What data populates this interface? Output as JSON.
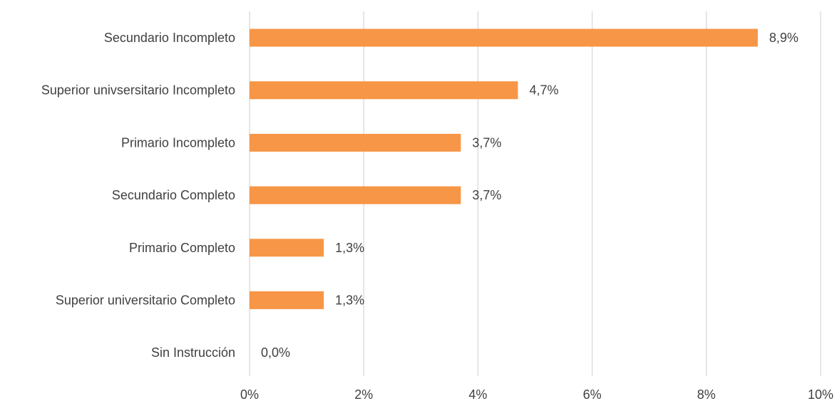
{
  "chart_data": {
    "type": "bar",
    "orientation": "horizontal",
    "categories": [
      "Secundario Incompleto",
      "Superior univsersitario Incompleto",
      "Primario Incompleto",
      "Secundario Completo",
      "Primario Completo",
      "Superior universitario Completo",
      "Sin Instrucción"
    ],
    "values": [
      8.9,
      4.7,
      3.7,
      3.7,
      1.3,
      1.3,
      0.0
    ],
    "data_labels": [
      "8,9%",
      "4,7%",
      "3,7%",
      "3,7%",
      "1,3%",
      "1,3%",
      "0,0%"
    ],
    "xlim": [
      0,
      10
    ],
    "x_ticks": [
      0,
      2,
      4,
      6,
      8,
      10
    ],
    "x_tick_labels": [
      "0%",
      "2%",
      "4%",
      "6%",
      "8%",
      "10%"
    ],
    "title": "",
    "xlabel": "",
    "ylabel": "",
    "grid": "vertical",
    "legend": "none",
    "bar_color": "#F79646",
    "grid_color": "#D9D9D9",
    "text_color": "#404040"
  }
}
